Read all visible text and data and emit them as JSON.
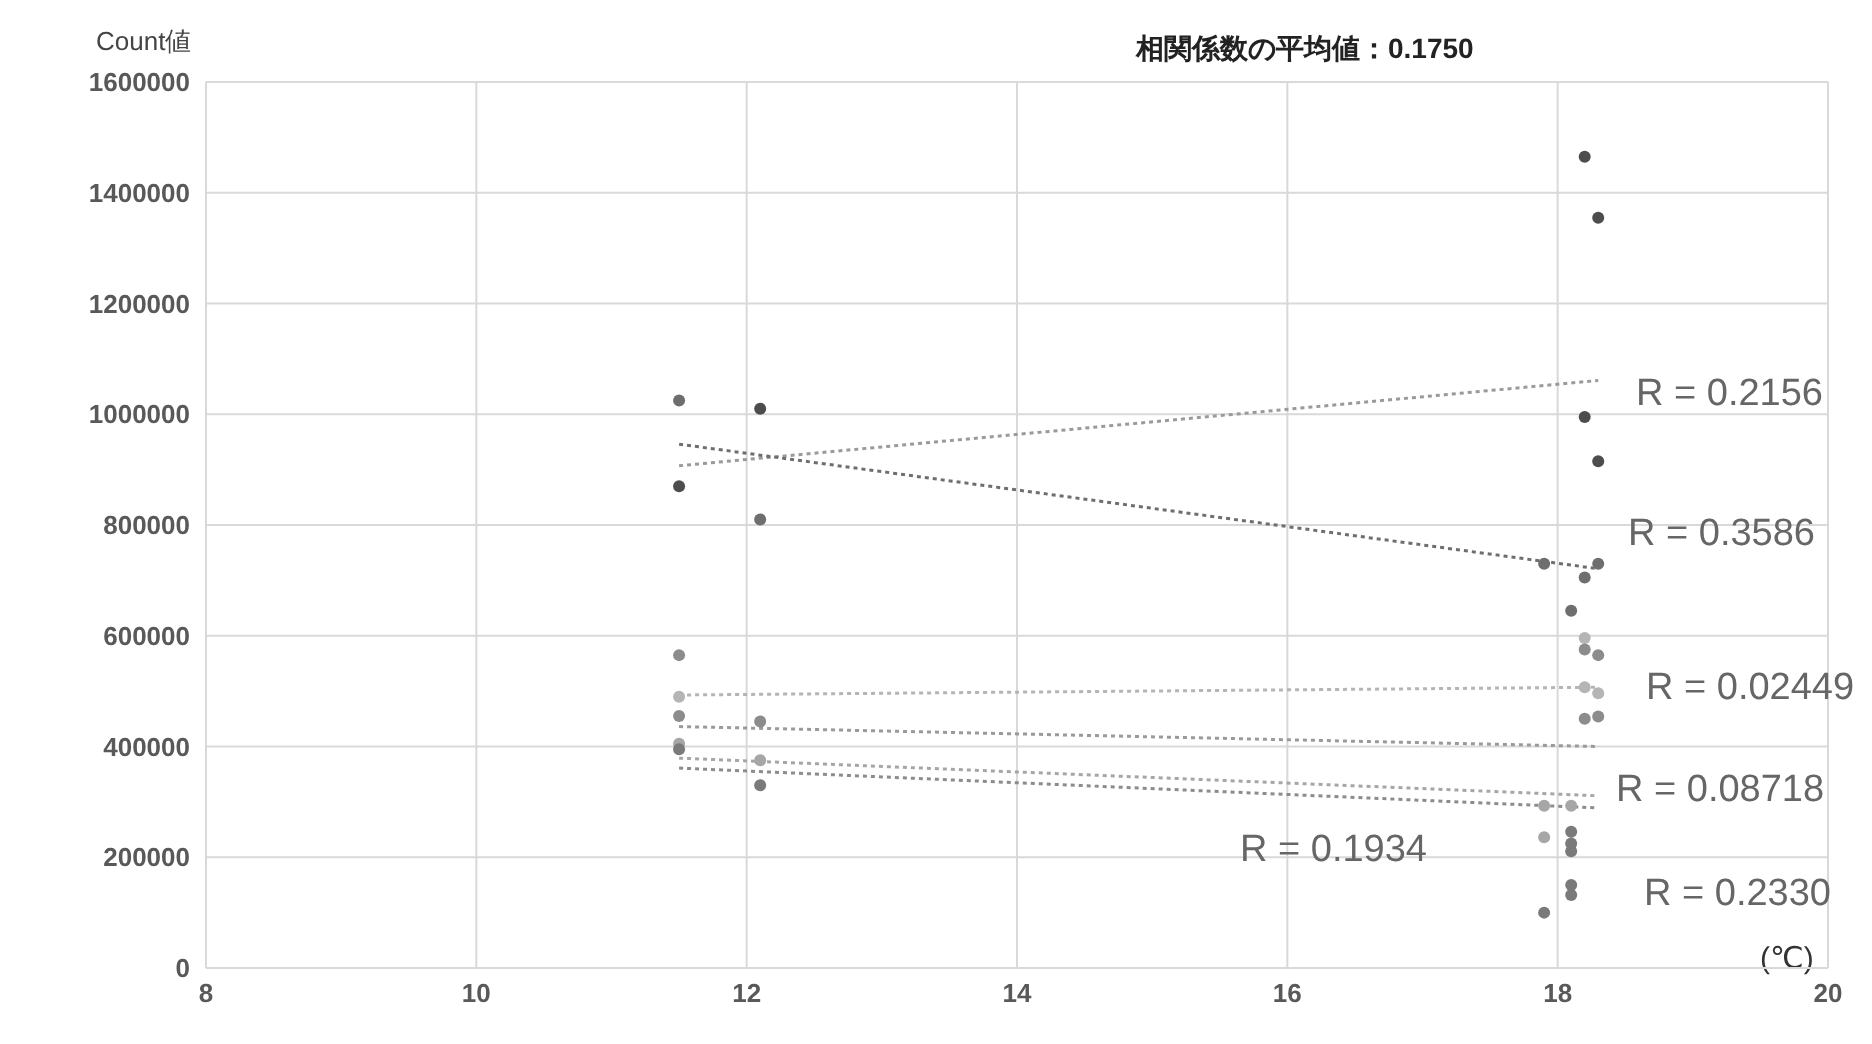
{
  "chart_data": {
    "type": "scatter",
    "title": "相関係数の平均値：0.1750",
    "ylabel": "Count値",
    "xlabel": "(℃)",
    "xlim": [
      8,
      20
    ],
    "xticks": [
      8,
      10,
      12,
      14,
      16,
      18,
      20
    ],
    "ylim": [
      0,
      1600000
    ],
    "yticks": [
      0,
      200000,
      400000,
      600000,
      800000,
      1000000,
      1200000,
      1400000,
      1600000
    ],
    "grid": true,
    "legend": false,
    "series": [
      {
        "type": "scatter",
        "color": "#4d4d4d",
        "x": [
          11.5,
          12.1,
          18.2,
          18.3,
          18.2,
          18.3
        ],
        "values": [
          870000,
          1010000,
          995000,
          915000,
          1465000,
          1355000
        ]
      },
      {
        "type": "scatter",
        "color": "#6e6e6e",
        "x": [
          11.5,
          12.1,
          17.9,
          18.1,
          18.3,
          18.2
        ],
        "values": [
          1025000,
          810000,
          730000,
          645000,
          730000,
          705000
        ]
      },
      {
        "type": "scatter",
        "color": "#b5b5b5",
        "x": [
          11.5,
          18.2,
          18.2,
          18.3
        ],
        "values": [
          490000,
          596000,
          507000,
          496000
        ]
      },
      {
        "type": "scatter",
        "color": "#8c8c8c",
        "x": [
          11.5,
          12.1,
          18.2,
          18.3,
          18.2,
          18.3,
          11.5
        ],
        "values": [
          455000,
          445000,
          450000,
          454000,
          575000,
          565000,
          565000
        ]
      },
      {
        "type": "scatter",
        "color": "#a6a6a6",
        "x": [
          11.5,
          12.1,
          17.9,
          17.9,
          18.1
        ],
        "values": [
          405000,
          375000,
          293000,
          236000,
          293000
        ]
      },
      {
        "type": "scatter",
        "color": "#7a7a7a",
        "x": [
          11.5,
          12.1,
          18.1,
          18.1,
          18.1,
          18.1,
          18.1,
          17.9
        ],
        "values": [
          395000,
          330000,
          246000,
          225000,
          211000,
          150000,
          132000,
          100000
        ]
      },
      {
        "type": "line",
        "color": "#9a9a9a",
        "line_style": "dotted",
        "x": [
          11.5,
          18.3
        ],
        "values": [
          907000,
          1061000
        ]
      },
      {
        "type": "line",
        "color": "#6e6e6e",
        "line_style": "dotted",
        "x": [
          11.5,
          18.3
        ],
        "values": [
          946000,
          721000
        ]
      },
      {
        "type": "line",
        "color": "#b5b5b5",
        "line_style": "dotted",
        "x": [
          11.5,
          18.3
        ],
        "values": [
          493000,
          507000
        ]
      },
      {
        "type": "line",
        "color": "#9a9a9a",
        "line_style": "dotted",
        "x": [
          11.5,
          18.3
        ],
        "values": [
          436000,
          400000
        ]
      },
      {
        "type": "line",
        "color": "#a6a6a6",
        "line_style": "dotted",
        "x": [
          11.5,
          18.3
        ],
        "values": [
          379000,
          311000
        ]
      },
      {
        "type": "line",
        "color": "#8c8c8c",
        "line_style": "dotted",
        "x": [
          11.5,
          18.3
        ],
        "values": [
          361000,
          289000
        ]
      }
    ],
    "annotations": [
      "R = 0.2156",
      "R = 0.3586",
      "R = 0.02449",
      "R = 0.08718",
      "R = 0.1934",
      "R = 0.2330"
    ]
  }
}
